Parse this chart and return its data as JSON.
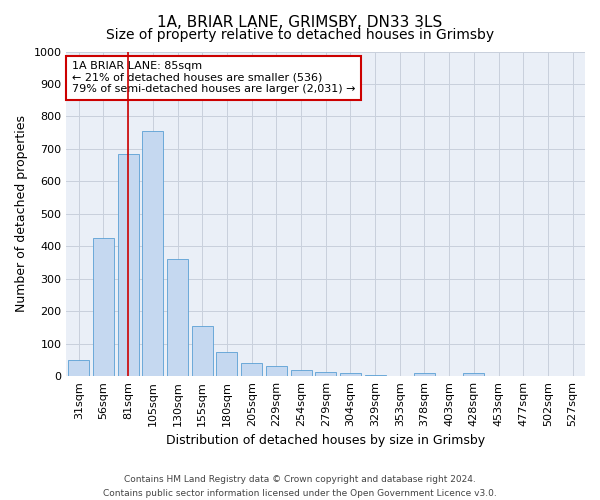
{
  "title": "1A, BRIAR LANE, GRIMSBY, DN33 3LS",
  "subtitle": "Size of property relative to detached houses in Grimsby",
  "xlabel": "Distribution of detached houses by size in Grimsby",
  "ylabel": "Number of detached properties",
  "footer_line1": "Contains HM Land Registry data © Crown copyright and database right 2024.",
  "footer_line2": "Contains public sector information licensed under the Open Government Licence v3.0.",
  "categories": [
    "31sqm",
    "56sqm",
    "81sqm",
    "105sqm",
    "130sqm",
    "155sqm",
    "180sqm",
    "205sqm",
    "229sqm",
    "254sqm",
    "279sqm",
    "304sqm",
    "329sqm",
    "353sqm",
    "378sqm",
    "403sqm",
    "428sqm",
    "453sqm",
    "477sqm",
    "502sqm",
    "527sqm"
  ],
  "values": [
    50,
    425,
    685,
    755,
    360,
    155,
    75,
    42,
    30,
    18,
    12,
    10,
    5,
    0,
    10,
    0,
    10,
    0,
    0,
    0,
    0
  ],
  "bar_color": "#c5d8f0",
  "bar_edge_color": "#5a9fd4",
  "grid_color": "#c8d0dc",
  "background_color": "#eaeff7",
  "annotation_line1": "1A BRIAR LANE: 85sqm",
  "annotation_line2": "← 21% of detached houses are smaller (536)",
  "annotation_line3": "79% of semi-detached houses are larger (2,031) →",
  "annotation_box_color": "#ffffff",
  "annotation_box_edge": "#cc0000",
  "vline_x": 2.0,
  "vline_color": "#cc0000",
  "ylim": [
    0,
    1000
  ],
  "yticks": [
    0,
    100,
    200,
    300,
    400,
    500,
    600,
    700,
    800,
    900,
    1000
  ],
  "title_fontsize": 11,
  "subtitle_fontsize": 10,
  "xlabel_fontsize": 9,
  "ylabel_fontsize": 9,
  "tick_fontsize": 8,
  "annotation_fontsize": 8,
  "footer_fontsize": 6.5
}
